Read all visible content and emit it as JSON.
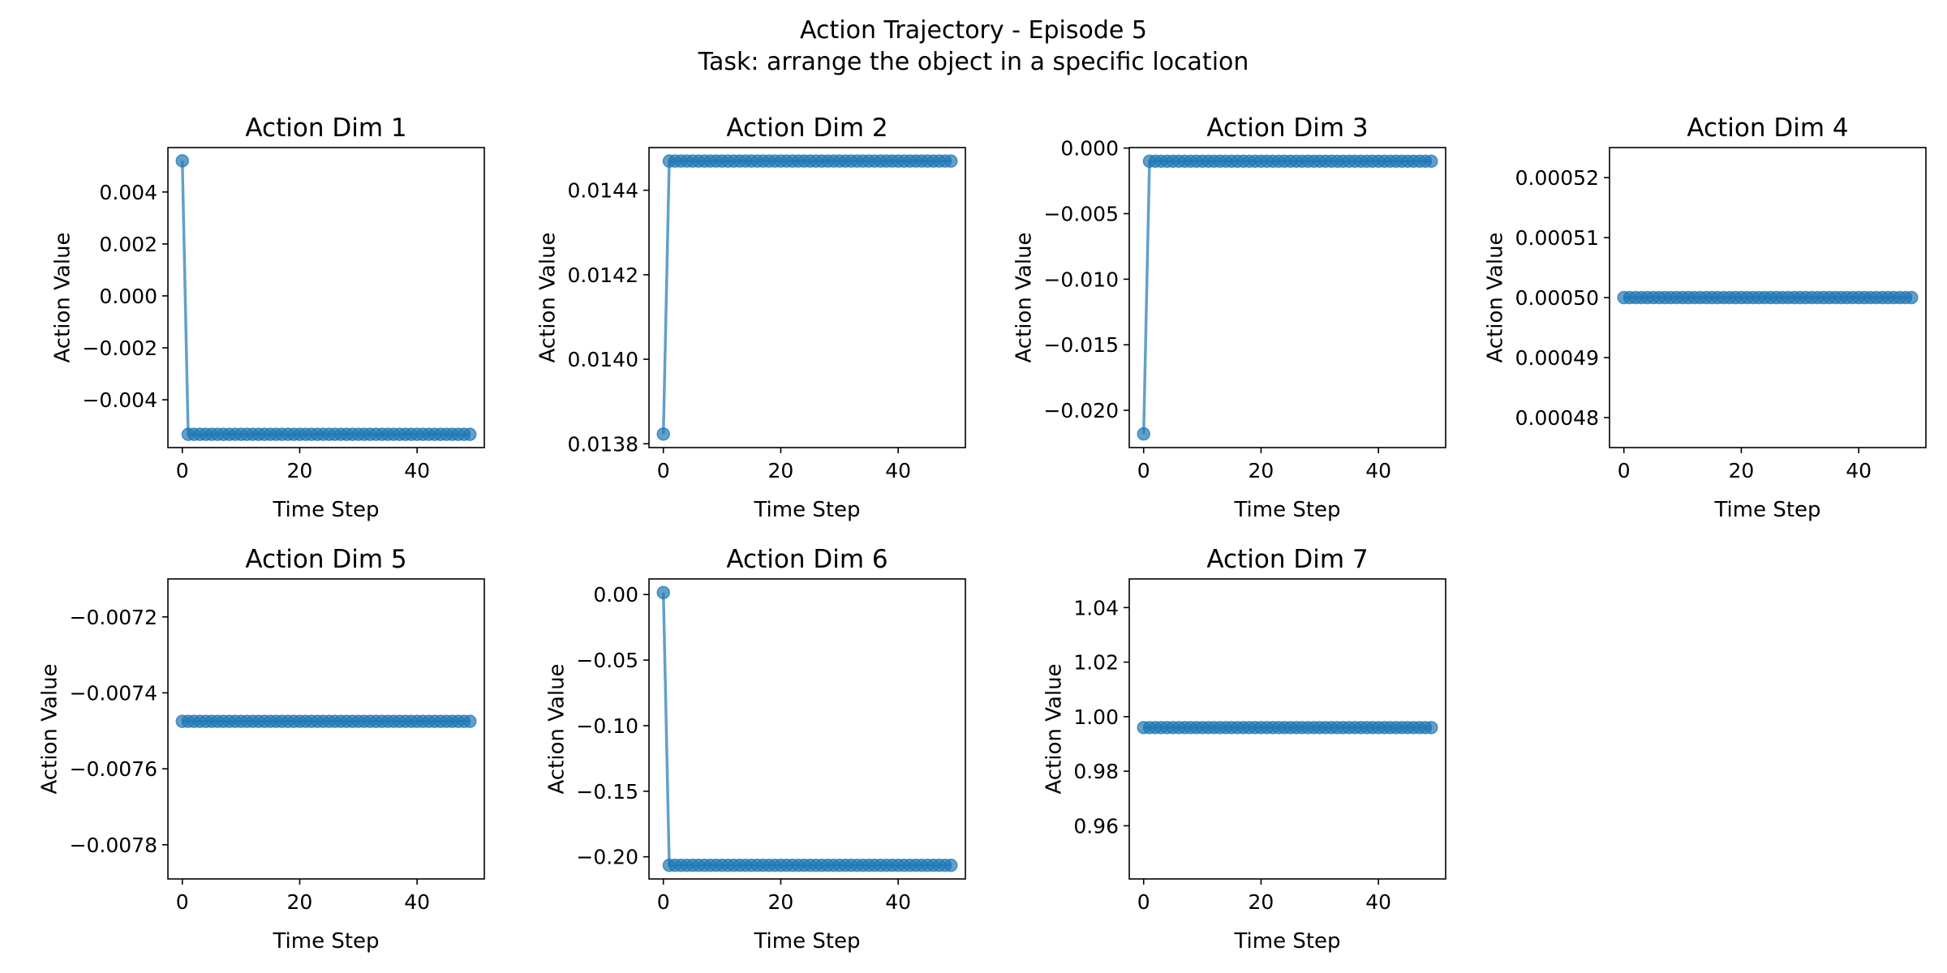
{
  "figure": {
    "title_line1": "Action Trajectory - Episode 5",
    "title_line2": "Task: arrange the object in a specific location"
  },
  "colors": {
    "series": "#1f77b4"
  },
  "chart_data": [
    {
      "type": "line",
      "title": "Action Dim 1",
      "xlabel": "Time Step",
      "ylabel": "Action Value",
      "marker": "circle",
      "grid": false,
      "n_points": 50,
      "first_value": 0.0052,
      "rest_value": -0.00533,
      "xlim": [
        -2.45,
        51.45
      ],
      "ylim": [
        -0.00584,
        0.00571
      ],
      "xticks": [
        0,
        20,
        40
      ],
      "xtick_labels": [
        "0",
        "20",
        "40"
      ],
      "yticks": [
        -0.004,
        -0.002,
        0.0,
        0.002,
        0.004
      ],
      "ytick_labels": [
        "−0.004",
        "−0.002",
        "0.000",
        "0.002",
        "0.004"
      ]
    },
    {
      "type": "line",
      "title": "Action Dim 2",
      "xlabel": "Time Step",
      "ylabel": "Action Value",
      "marker": "circle",
      "grid": false,
      "n_points": 50,
      "first_value": 0.013823,
      "rest_value": 0.014469,
      "xlim": [
        -2.45,
        51.45
      ],
      "ylim": [
        0.013791,
        0.014501
      ],
      "xticks": [
        0,
        20,
        40
      ],
      "xtick_labels": [
        "0",
        "20",
        "40"
      ],
      "yticks": [
        0.0138,
        0.014,
        0.0142,
        0.0144
      ],
      "ytick_labels": [
        "0.0138",
        "0.0140",
        "0.0142",
        "0.0144"
      ]
    },
    {
      "type": "line",
      "title": "Action Dim 3",
      "xlabel": "Time Step",
      "ylabel": "Action Value",
      "marker": "circle",
      "grid": false,
      "n_points": 50,
      "first_value": -0.0218,
      "rest_value": -0.001,
      "xlim": [
        -2.45,
        51.45
      ],
      "ylim": [
        -0.02284,
        4e-05
      ],
      "xticks": [
        0,
        20,
        40
      ],
      "xtick_labels": [
        "0",
        "20",
        "40"
      ],
      "yticks": [
        -0.02,
        -0.015,
        -0.01,
        -0.005,
        0.0
      ],
      "ytick_labels": [
        "−0.020",
        "−0.015",
        "−0.010",
        "−0.005",
        "0.000"
      ]
    },
    {
      "type": "line",
      "title": "Action Dim 4",
      "xlabel": "Time Step",
      "ylabel": "Action Value",
      "marker": "circle",
      "grid": false,
      "n_points": 50,
      "first_value": 0.0005,
      "rest_value": 0.0005,
      "xlim": [
        -2.45,
        51.45
      ],
      "ylim": [
        0.000475,
        0.000525
      ],
      "xticks": [
        0,
        20,
        40
      ],
      "xtick_labels": [
        "0",
        "20",
        "40"
      ],
      "yticks": [
        0.00048,
        0.00049,
        0.0005,
        0.00051,
        0.00052
      ],
      "ytick_labels": [
        "0.00048",
        "0.00049",
        "0.00050",
        "0.00051",
        "0.00052"
      ]
    },
    {
      "type": "line",
      "title": "Action Dim 5",
      "xlabel": "Time Step",
      "ylabel": "Action Value",
      "marker": "circle",
      "grid": false,
      "n_points": 50,
      "first_value": -0.007475,
      "rest_value": -0.007475,
      "xlim": [
        -2.45,
        51.45
      ],
      "ylim": [
        -0.00789,
        -0.0071
      ],
      "xticks": [
        0,
        20,
        40
      ],
      "xtick_labels": [
        "0",
        "20",
        "40"
      ],
      "yticks": [
        -0.0078,
        -0.0076,
        -0.0074,
        -0.0072
      ],
      "ytick_labels": [
        "−0.0078",
        "−0.0076",
        "−0.0074",
        "−0.0072"
      ]
    },
    {
      "type": "line",
      "title": "Action Dim 6",
      "xlabel": "Time Step",
      "ylabel": "Action Value",
      "marker": "circle",
      "grid": false,
      "n_points": 50,
      "first_value": 0.0015,
      "rest_value": -0.2065,
      "xlim": [
        -2.45,
        51.45
      ],
      "ylim": [
        -0.2169,
        0.0119
      ],
      "xticks": [
        0,
        20,
        40
      ],
      "xtick_labels": [
        "0",
        "20",
        "40"
      ],
      "yticks": [
        -0.2,
        -0.15,
        -0.1,
        -0.05,
        0.0
      ],
      "ytick_labels": [
        "−0.20",
        "−0.15",
        "−0.10",
        "−0.05",
        "0.00"
      ]
    },
    {
      "type": "line",
      "title": "Action Dim 7",
      "xlabel": "Time Step",
      "ylabel": "Action Value",
      "marker": "circle",
      "grid": false,
      "n_points": 50,
      "first_value": 0.996,
      "rest_value": 0.996,
      "xlim": [
        -2.45,
        51.45
      ],
      "ylim": [
        0.9405,
        1.0505
      ],
      "xticks": [
        0,
        20,
        40
      ],
      "xtick_labels": [
        "0",
        "20",
        "40"
      ],
      "yticks": [
        0.96,
        0.98,
        1.0,
        1.02,
        1.04
      ],
      "ytick_labels": [
        "0.96",
        "0.98",
        "1.00",
        "1.02",
        "1.04"
      ]
    }
  ]
}
